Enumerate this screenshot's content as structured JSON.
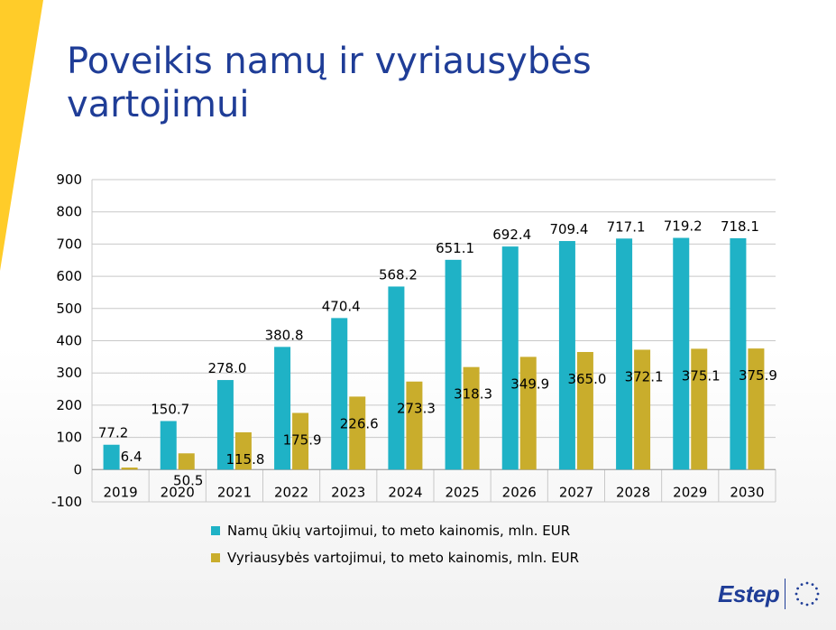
{
  "page": {
    "title_lines": [
      "Poveikis namų ir vyriausybės",
      "vartojimui"
    ],
    "logo_text": "Estep",
    "accent_color": "#ffcc29",
    "title_color": "#1f3d97",
    "logo_icon": "eu-stars-icon"
  },
  "chart_data": {
    "type": "bar",
    "title": "",
    "xlabel": "",
    "ylabel": "",
    "categories": [
      "2019",
      "2020",
      "2021",
      "2022",
      "2023",
      "2024",
      "2025",
      "2026",
      "2027",
      "2028",
      "2029",
      "2030"
    ],
    "ylim": [
      -100,
      900
    ],
    "yticks": [
      -100,
      0,
      100,
      200,
      300,
      400,
      500,
      600,
      700,
      800,
      900
    ],
    "grid": "horizontal",
    "legend_position": "bottom",
    "series": [
      {
        "name": "Namų ūkių vartojimui, to meto kainomis, mln. EUR",
        "color": "#1fb2c6",
        "values": [
          77.2,
          150.7,
          278.0,
          380.8,
          470.4,
          568.2,
          651.1,
          692.4,
          709.4,
          717.1,
          719.2,
          718.1
        ],
        "labels": [
          "77.2",
          "150.7",
          "278.0",
          "380.8",
          "470.4",
          "568.2",
          "651.1",
          "692.4",
          "709.4",
          "717.1",
          "719.2",
          "718.1"
        ]
      },
      {
        "name": "Vyriausybės vartojimui, to meto kainomis,  mln. EUR",
        "color": "#c9ad2c",
        "values": [
          6.4,
          50.5,
          115.8,
          175.9,
          226.6,
          273.3,
          318.3,
          349.9,
          365.0,
          372.1,
          375.1,
          375.9
        ],
        "labels": [
          "6.4",
          "50.5",
          "115.8",
          "175.9",
          "226.6",
          "273.3",
          "318.3",
          "349.9",
          "365.0",
          "372.1",
          "375.1",
          "375.9"
        ]
      }
    ]
  }
}
